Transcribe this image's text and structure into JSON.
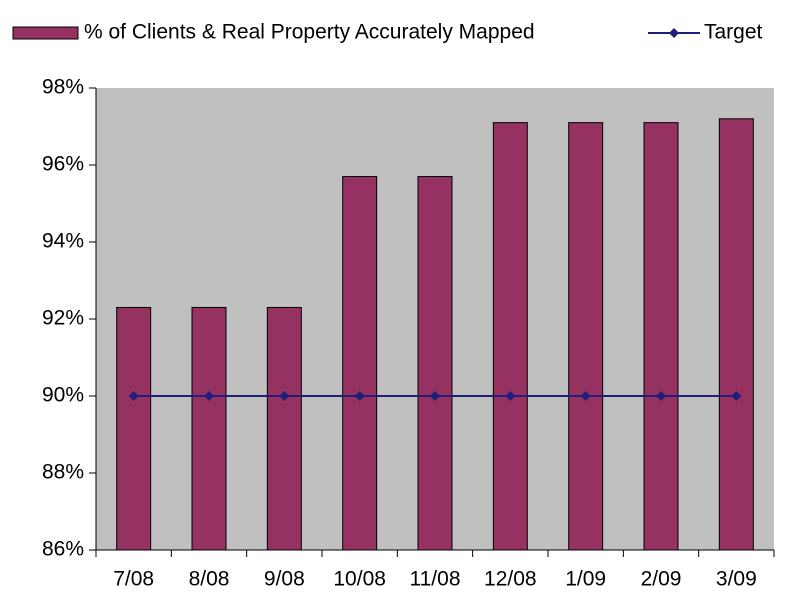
{
  "chart_data": {
    "type": "bar",
    "categories": [
      "7/08",
      "8/08",
      "9/08",
      "10/08",
      "11/08",
      "12/08",
      "1/09",
      "2/09",
      "3/09"
    ],
    "series": [
      {
        "name": "% of Clients & Real Property Accurately Mapped",
        "type": "bar",
        "color": "#953262",
        "values": [
          92.3,
          92.3,
          92.3,
          95.7,
          95.7,
          97.1,
          97.1,
          97.1,
          97.2
        ]
      },
      {
        "name": "Target",
        "type": "line",
        "color": "#1f1f7a",
        "values": [
          90,
          90,
          90,
          90,
          90,
          90,
          90,
          90,
          90
        ]
      }
    ],
    "ylim": [
      86,
      98
    ],
    "yticks": [
      {
        "value": 86,
        "label": "86%"
      },
      {
        "value": 88,
        "label": "88%"
      },
      {
        "value": 90,
        "label": "90%"
      },
      {
        "value": 92,
        "label": "92%"
      },
      {
        "value": 94,
        "label": "94%"
      },
      {
        "value": 96,
        "label": "96%"
      },
      {
        "value": 98,
        "label": "98%"
      }
    ],
    "plot_background": "#c0c0c0",
    "legend": "top"
  }
}
